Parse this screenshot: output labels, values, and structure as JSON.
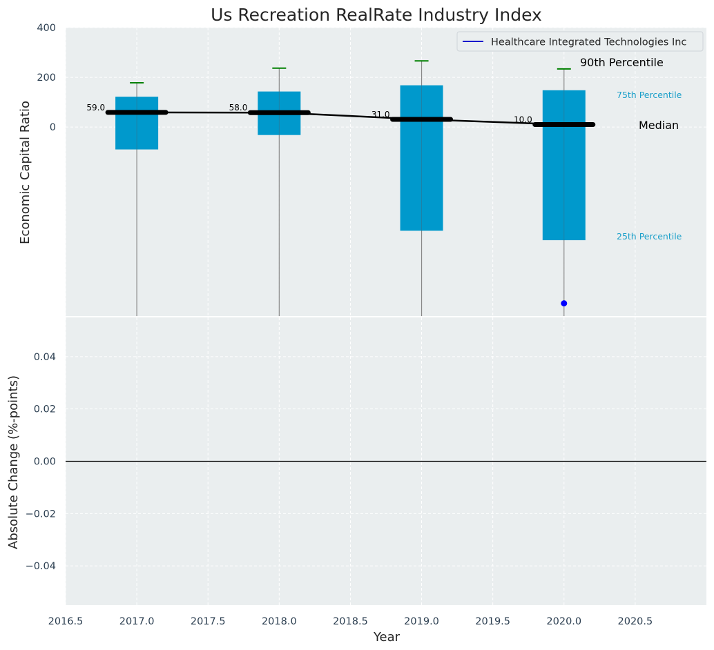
{
  "chart_data": {
    "type": "box",
    "title": "Us Recreation RealRate Industry Index",
    "top_panel": {
      "ylabel": "Economic Capital Ratio",
      "ylim": [
        -760,
        400
      ],
      "yticks": [
        0,
        200,
        400
      ],
      "grid": true,
      "legend": {
        "entries": [
          "Healthcare Integrated Technologies Inc"
        ],
        "placement": "top-right",
        "color": "#0000cc"
      },
      "boxes": [
        {
          "x": 2017,
          "q1": -90,
          "q3": 122,
          "median": 59,
          "p90": 178,
          "whisker_low": -760,
          "label": "59.0"
        },
        {
          "x": 2018,
          "q1": -32,
          "q3": 143,
          "median": 58,
          "p90": 237,
          "whisker_low": -760,
          "label": "58.0"
        },
        {
          "x": 2019,
          "q1": -417,
          "q3": 168,
          "median": 31,
          "p90": 266,
          "whisker_low": -760,
          "label": "31.0"
        },
        {
          "x": 2020,
          "q1": -455,
          "q3": 148,
          "median": 10,
          "p90": 234,
          "whisker_low": -760,
          "label": "10.0"
        }
      ],
      "company_points": [
        {
          "x": 2020,
          "y": -709
        }
      ],
      "annotations": {
        "p90": "90th Percentile",
        "p75": "75th Percentile",
        "median": "Median",
        "p25": "25th Percentile"
      }
    },
    "bottom_panel": {
      "ylabel": "Absolute Change (%-points)",
      "xlabel": "Year",
      "ylim": [
        -0.055,
        0.055
      ],
      "yticks": [
        -0.04,
        -0.02,
        0.0,
        0.02,
        0.04
      ],
      "ytick_labels": [
        "−0.04",
        "−0.02",
        "0.00",
        "0.02",
        "0.04"
      ],
      "grid": true,
      "zero_line": true
    },
    "xlim": [
      2016.5,
      2021.0
    ],
    "xticks": [
      2016.5,
      2017.0,
      2017.5,
      2018.0,
      2018.5,
      2019.0,
      2019.5,
      2020.0,
      2020.5
    ],
    "colors": {
      "box": "#0099cc",
      "median": "#000000",
      "whisker": "#888888",
      "cap": "#008000",
      "point": "#0000ff",
      "background": "#eaeeef",
      "tick": "#2b3e50",
      "annotation_percentile": "#1a9fc9"
    }
  }
}
